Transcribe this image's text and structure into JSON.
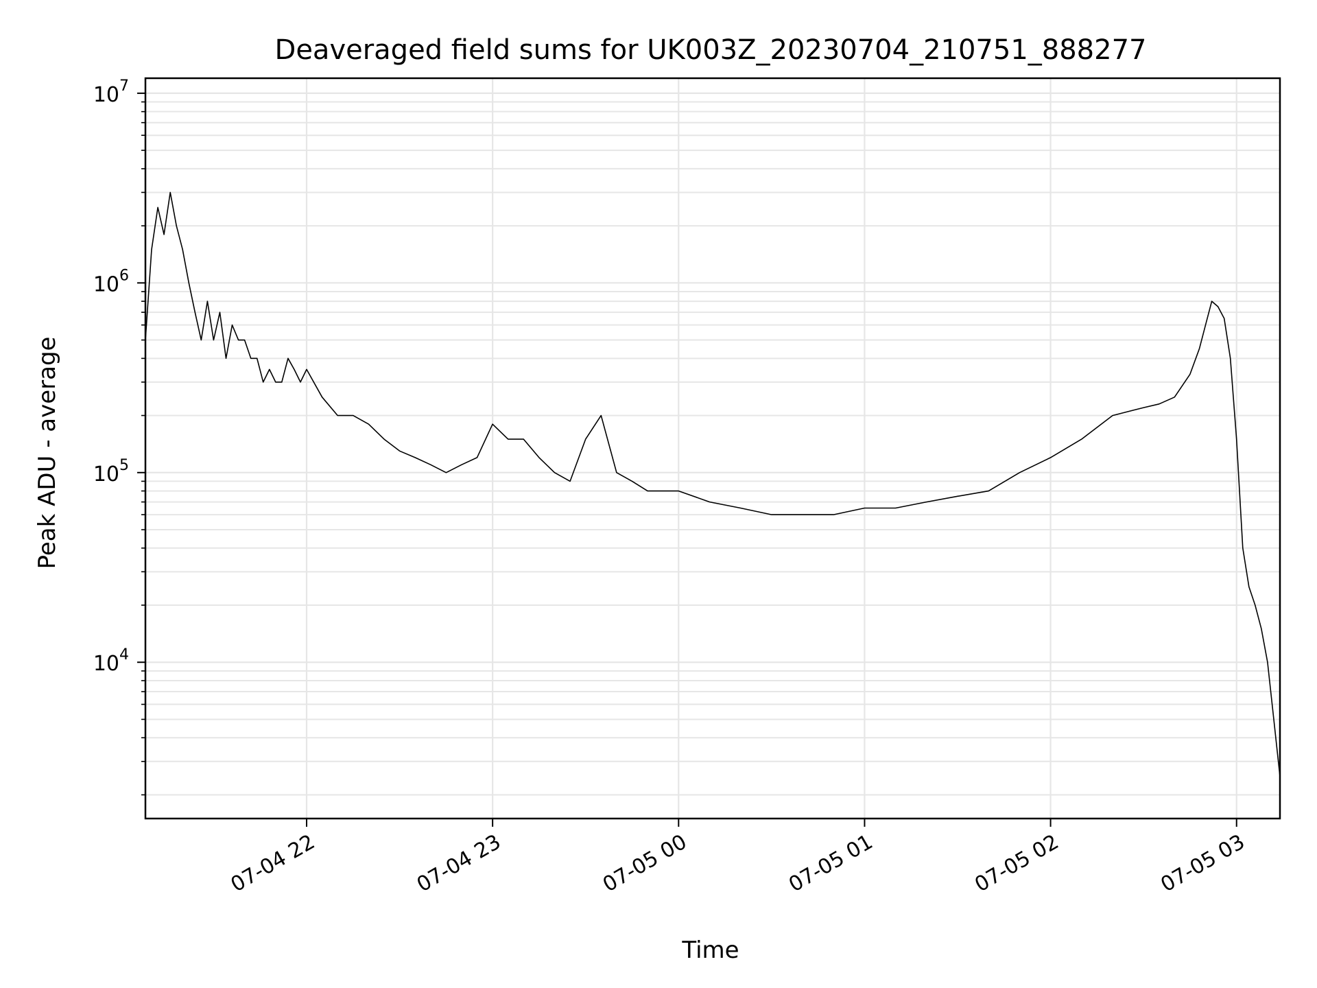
{
  "chart_data": {
    "type": "line",
    "title": "Deaveraged field sums for UK003Z_20230704_210751_888277",
    "xlabel": "Time",
    "ylabel": "Peak ADU - average",
    "yscale": "log",
    "ylim": [
      1500,
      12000000
    ],
    "xlim": [
      "2023-07-04 21:08",
      "2023-07-05 03:14"
    ],
    "grid": true,
    "line_color": "#000000",
    "x_ticks": [
      {
        "at": "2023-07-04 22:00",
        "label": "07-04 22"
      },
      {
        "at": "2023-07-04 23:00",
        "label": "07-04 23"
      },
      {
        "at": "2023-07-05 00:00",
        "label": "07-05 00"
      },
      {
        "at": "2023-07-05 01:00",
        "label": "07-05 01"
      },
      {
        "at": "2023-07-05 02:00",
        "label": "07-05 02"
      },
      {
        "at": "2023-07-05 03:00",
        "label": "07-05 03"
      }
    ],
    "y_ticks": [
      {
        "value": 10000,
        "base": "10",
        "exp": "4"
      },
      {
        "value": 100000,
        "base": "10",
        "exp": "5"
      },
      {
        "value": 1000000,
        "base": "10",
        "exp": "6"
      },
      {
        "value": 10000000,
        "base": "10",
        "exp": "7"
      }
    ],
    "series": [
      {
        "x": [
          "2023-07-04 21:08",
          "2023-07-04 21:10",
          "2023-07-04 21:12",
          "2023-07-04 21:14",
          "2023-07-04 21:16",
          "2023-07-04 21:18",
          "2023-07-04 21:20",
          "2023-07-04 21:22",
          "2023-07-04 21:24",
          "2023-07-04 21:26",
          "2023-07-04 21:28",
          "2023-07-04 21:30",
          "2023-07-04 21:32",
          "2023-07-04 21:34",
          "2023-07-04 21:36",
          "2023-07-04 21:38",
          "2023-07-04 21:40",
          "2023-07-04 21:42",
          "2023-07-04 21:44",
          "2023-07-04 21:46",
          "2023-07-04 21:48",
          "2023-07-04 21:50",
          "2023-07-04 21:52",
          "2023-07-04 21:54",
          "2023-07-04 21:56",
          "2023-07-04 21:58",
          "2023-07-04 22:00",
          "2023-07-04 22:05",
          "2023-07-04 22:10",
          "2023-07-04 22:15",
          "2023-07-04 22:20",
          "2023-07-04 22:25",
          "2023-07-04 22:30",
          "2023-07-04 22:35",
          "2023-07-04 22:40",
          "2023-07-04 22:45",
          "2023-07-04 22:50",
          "2023-07-04 22:55",
          "2023-07-04 23:00",
          "2023-07-04 23:05",
          "2023-07-04 23:10",
          "2023-07-04 23:15",
          "2023-07-04 23:20",
          "2023-07-04 23:25",
          "2023-07-04 23:30",
          "2023-07-04 23:35",
          "2023-07-04 23:40",
          "2023-07-04 23:45",
          "2023-07-04 23:50",
          "2023-07-04 23:55",
          "2023-07-05 00:00",
          "2023-07-05 00:10",
          "2023-07-05 00:20",
          "2023-07-05 00:30",
          "2023-07-05 00:40",
          "2023-07-05 00:50",
          "2023-07-05 01:00",
          "2023-07-05 01:10",
          "2023-07-05 01:20",
          "2023-07-05 01:30",
          "2023-07-05 01:40",
          "2023-07-05 01:50",
          "2023-07-05 02:00",
          "2023-07-05 02:10",
          "2023-07-05 02:20",
          "2023-07-05 02:30",
          "2023-07-05 02:35",
          "2023-07-05 02:40",
          "2023-07-05 02:45",
          "2023-07-05 02:48",
          "2023-07-05 02:50",
          "2023-07-05 02:52",
          "2023-07-05 02:54",
          "2023-07-05 02:56",
          "2023-07-05 02:58",
          "2023-07-05 03:00",
          "2023-07-05 03:02",
          "2023-07-05 03:04",
          "2023-07-05 03:06",
          "2023-07-05 03:08",
          "2023-07-05 03:10",
          "2023-07-05 03:12",
          "2023-07-05 03:14"
        ],
        "y": [
          500000,
          1500000,
          2500000,
          1800000,
          3000000,
          2000000,
          1500000,
          1000000,
          700000,
          500000,
          800000,
          500000,
          700000,
          400000,
          600000,
          500000,
          500000,
          400000,
          400000,
          300000,
          350000,
          300000,
          300000,
          400000,
          350000,
          300000,
          350000,
          250000,
          200000,
          200000,
          180000,
          150000,
          130000,
          120000,
          110000,
          100000,
          110000,
          120000,
          180000,
          150000,
          150000,
          120000,
          100000,
          90000,
          150000,
          200000,
          100000,
          90000,
          80000,
          80000,
          80000,
          70000,
          65000,
          60000,
          60000,
          60000,
          65000,
          65000,
          70000,
          75000,
          80000,
          100000,
          120000,
          150000,
          200000,
          220000,
          230000,
          250000,
          330000,
          450000,
          600000,
          800000,
          750000,
          650000,
          400000,
          150000,
          40000,
          25000,
          20000,
          15000,
          10000,
          5000,
          2500
        ]
      }
    ]
  }
}
